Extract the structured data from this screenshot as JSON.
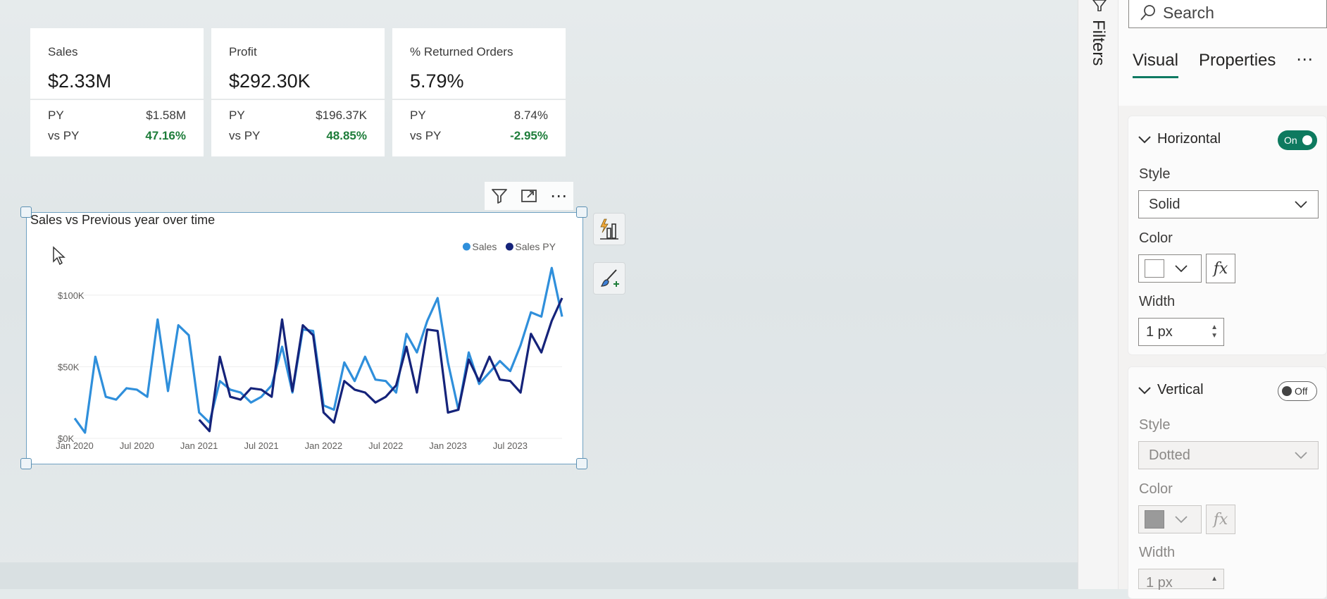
{
  "kpis": [
    {
      "title": "Sales",
      "value": "$2.33M",
      "py_label": "PY",
      "py_value": "$1.58M",
      "vs_label": "vs PY",
      "vs_value": "47.16%"
    },
    {
      "title": "Profit",
      "value": "$292.30K",
      "py_label": "PY",
      "py_value": "$196.37K",
      "vs_label": "vs PY",
      "vs_value": "48.85%"
    },
    {
      "title": "% Returned Orders",
      "value": "5.79%",
      "py_label": "PY",
      "py_value": "8.74%",
      "vs_label": "vs PY",
      "vs_value": "-2.95%"
    }
  ],
  "visual_header": {
    "icons": [
      "filter-icon",
      "focus-mode-icon",
      "more-options-icon"
    ],
    "more_label": "⋯"
  },
  "chart_data": {
    "type": "line",
    "title": "Sales vs Previous year over time",
    "xlabel": "",
    "ylabel": "",
    "x": [
      "2020-01",
      "2020-02",
      "2020-03",
      "2020-04",
      "2020-05",
      "2020-06",
      "2020-07",
      "2020-08",
      "2020-09",
      "2020-10",
      "2020-11",
      "2020-12",
      "2021-01",
      "2021-02",
      "2021-03",
      "2021-04",
      "2021-05",
      "2021-06",
      "2021-07",
      "2021-08",
      "2021-09",
      "2021-10",
      "2021-11",
      "2021-12",
      "2022-01",
      "2022-02",
      "2022-03",
      "2022-04",
      "2022-05",
      "2022-06",
      "2022-07",
      "2022-08",
      "2022-09",
      "2022-10",
      "2022-11",
      "2022-12",
      "2023-01",
      "2023-02",
      "2023-03",
      "2023-04",
      "2023-05",
      "2023-06",
      "2023-07",
      "2023-08",
      "2023-09",
      "2023-10",
      "2023-11",
      "2023-12"
    ],
    "x_ticks": [
      "Jan 2020",
      "Jul 2020",
      "Jan 2021",
      "Jul 2021",
      "Jan 2022",
      "Jul 2022",
      "Jan 2023",
      "Jul 2023"
    ],
    "y_ticks": [
      "$0K",
      "$50K",
      "$100K"
    ],
    "ylim": [
      0,
      125000
    ],
    "grid": true,
    "legend_position": "top-right",
    "series": [
      {
        "name": "Sales",
        "color": "#2f8fdb",
        "values": [
          14000,
          4000,
          57000,
          29000,
          27000,
          35000,
          34000,
          29000,
          83000,
          33000,
          79000,
          72000,
          18000,
          11000,
          40000,
          34000,
          32000,
          25000,
          29000,
          37000,
          64000,
          32000,
          76000,
          75000,
          23000,
          20000,
          53000,
          40000,
          57000,
          41000,
          40000,
          32000,
          73000,
          60000,
          82000,
          98000,
          53000,
          20000,
          60000,
          38000,
          46000,
          54000,
          47000,
          65000,
          88000,
          85000,
          119000,
          85000
        ],
        "name_hidden": false
      },
      {
        "name": "Sales PY",
        "color": "#15237a",
        "values": [
          null,
          null,
          null,
          null,
          null,
          null,
          null,
          null,
          null,
          null,
          null,
          null,
          13000,
          5000,
          57000,
          29000,
          27000,
          35000,
          34000,
          29000,
          83000,
          33000,
          79000,
          72000,
          18000,
          11000,
          40000,
          34000,
          32000,
          25000,
          29000,
          37000,
          64000,
          32000,
          76000,
          75000,
          18000,
          20000,
          55000,
          40000,
          57000,
          41000,
          40000,
          32000,
          73000,
          60000,
          82000,
          98000
        ]
      }
    ]
  },
  "filters_pane": {
    "label": "Filters"
  },
  "format_pane": {
    "search_placeholder": "Search",
    "tabs": [
      "Visual",
      "Properties"
    ],
    "more_label": "⋯",
    "horizontal": {
      "title": "Horizontal",
      "toggle": "On",
      "style_label": "Style",
      "style_value": "Solid",
      "color_label": "Color",
      "color_value": "#ffffff",
      "fx_label": "fx",
      "width_label": "Width",
      "width_value": "1 px"
    },
    "vertical": {
      "title": "Vertical",
      "toggle": "Off",
      "style_label": "Style",
      "style_value": "Dotted",
      "color_label": "Color",
      "color_value": "#9a9a9a",
      "fx_label": "fx",
      "width_label": "Width",
      "width_value": "1 px"
    }
  }
}
